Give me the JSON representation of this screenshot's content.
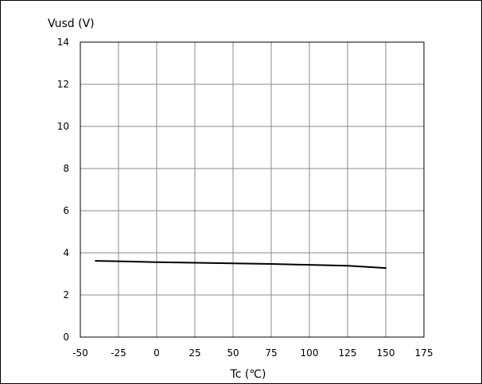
{
  "chart_data": {
    "type": "line",
    "title": "",
    "xlabel": "Tc (℃)",
    "ylabel": "Vusd (V)",
    "xlim": [
      -50,
      175
    ],
    "ylim": [
      0,
      14
    ],
    "xticks": [
      -50,
      -25,
      0,
      25,
      50,
      75,
      100,
      125,
      150,
      175
    ],
    "yticks": [
      0,
      2,
      4,
      6,
      8,
      10,
      12,
      14
    ],
    "x_tick_labels": [
      "-50",
      "-25",
      "0",
      "25",
      "50",
      "75",
      "100",
      "125",
      "150",
      "175"
    ],
    "y_tick_labels": [
      "0",
      "2",
      "4",
      "6",
      "8",
      "10",
      "12",
      "14"
    ],
    "grid": true,
    "legend": "none",
    "series": [
      {
        "color": "#000000",
        "x": [
          -40,
          -25,
          0,
          25,
          50,
          75,
          100,
          125,
          150
        ],
        "y": [
          3.62,
          3.6,
          3.56,
          3.53,
          3.5,
          3.47,
          3.43,
          3.39,
          3.28
        ]
      }
    ]
  }
}
